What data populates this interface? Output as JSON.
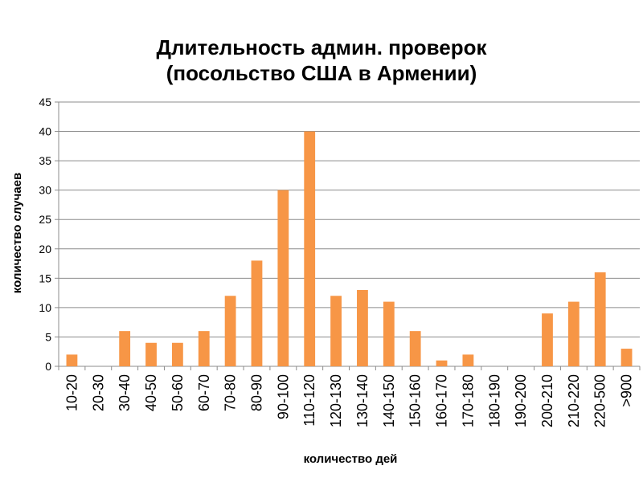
{
  "chart_data": {
    "type": "bar",
    "title_lines": [
      "Длительность админ. проверок",
      "(посольство США в Армении)"
    ],
    "xlabel": "количество дей",
    "ylabel": "количество случаев",
    "ylim": [
      0,
      45
    ],
    "yticks": [
      0,
      5,
      10,
      15,
      20,
      25,
      30,
      35,
      40,
      45
    ],
    "grid": true,
    "legend": "none",
    "bar_color": "#F79646",
    "categories": [
      "10-20",
      "20-30",
      "30-40",
      "40-50",
      "50-60",
      "60-70",
      "70-80",
      "80-90",
      "90-100",
      "110-120",
      "120-130",
      "130-140",
      "140-150",
      "150-160",
      "160-170",
      "170-180",
      "180-190",
      "190-200",
      "200-210",
      "210-220",
      "220-500",
      ">900"
    ],
    "values": [
      2,
      0,
      6,
      4,
      4,
      6,
      12,
      18,
      30,
      40,
      12,
      13,
      11,
      6,
      1,
      2,
      0,
      0,
      9,
      11,
      16,
      3
    ]
  }
}
